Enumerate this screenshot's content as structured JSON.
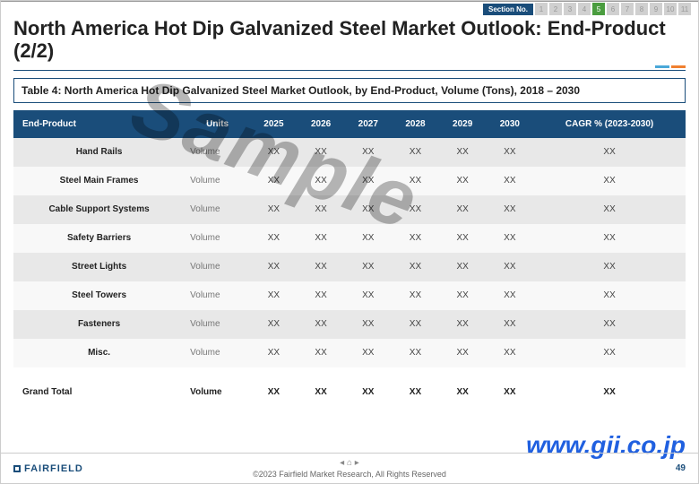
{
  "section_nav": {
    "label": "Section No.",
    "boxes": [
      "1",
      "2",
      "3",
      "4",
      "5",
      "6",
      "7",
      "8",
      "9",
      "10",
      "11"
    ],
    "active_index": 4
  },
  "title": "North America Hot Dip Galvanized Steel Market Outlook: End-Product (2/2)",
  "table_title": "Table 4: North America Hot Dip Galvanized Steel Market Outlook, by End-Product, Volume (Tons), 2018 – 2030",
  "columns": [
    "End-Product",
    "Units",
    "2025",
    "2026",
    "2027",
    "2028",
    "2029",
    "2030",
    "CAGR % (2023-2030)"
  ],
  "rows": [
    {
      "product": "Hand Rails",
      "units": "Volume",
      "vals": [
        "XX",
        "XX",
        "XX",
        "XX",
        "XX",
        "XX",
        "XX"
      ]
    },
    {
      "product": "Steel Main Frames",
      "units": "Volume",
      "vals": [
        "XX",
        "XX",
        "XX",
        "XX",
        "XX",
        "XX",
        "XX"
      ]
    },
    {
      "product": "Cable Support Systems",
      "units": "Volume",
      "vals": [
        "XX",
        "XX",
        "XX",
        "XX",
        "XX",
        "XX",
        "XX"
      ]
    },
    {
      "product": "Safety Barriers",
      "units": "Volume",
      "vals": [
        "XX",
        "XX",
        "XX",
        "XX",
        "XX",
        "XX",
        "XX"
      ]
    },
    {
      "product": "Street Lights",
      "units": "Volume",
      "vals": [
        "XX",
        "XX",
        "XX",
        "XX",
        "XX",
        "XX",
        "XX"
      ]
    },
    {
      "product": "Steel Towers",
      "units": "Volume",
      "vals": [
        "XX",
        "XX",
        "XX",
        "XX",
        "XX",
        "XX",
        "XX"
      ]
    },
    {
      "product": "Fasteners",
      "units": "Volume",
      "vals": [
        "XX",
        "XX",
        "XX",
        "XX",
        "XX",
        "XX",
        "XX"
      ]
    },
    {
      "product": "Misc.",
      "units": "Volume",
      "vals": [
        "XX",
        "XX",
        "XX",
        "XX",
        "XX",
        "XX",
        "XX"
      ]
    }
  ],
  "grand_total": {
    "label": "Grand Total",
    "units": "Volume",
    "vals": [
      "XX",
      "XX",
      "XX",
      "XX",
      "XX",
      "XX",
      "XX"
    ]
  },
  "watermark_sample": "Sample",
  "watermark_url": "www.gii.co.jp",
  "footer": {
    "logo": "FAIRFIELD",
    "nav_left": "◂",
    "nav_home": "⌂",
    "nav_right": "▸",
    "copyright": "©2023 Fairfield Market Research, All Rights Reserved",
    "page": "49"
  },
  "colors": {
    "header_bg": "#1a4d7a",
    "even_row": "#e8e8e8",
    "odd_row": "#f8f8f8",
    "active_section": "#4a9d3f"
  }
}
